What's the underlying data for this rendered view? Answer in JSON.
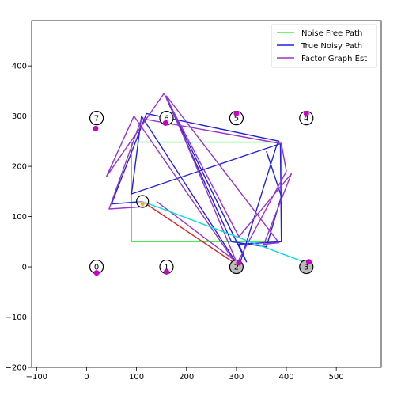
{
  "chart_data": {
    "type": "line",
    "title": "",
    "xlabel": "",
    "ylabel": "",
    "xlim": [
      -110,
      590
    ],
    "ylim": [
      -200,
      490
    ],
    "xticks": [
      -100,
      0,
      100,
      200,
      300,
      400,
      500
    ],
    "yticks": [
      -200,
      -100,
      0,
      100,
      200,
      300,
      400
    ],
    "xtick_labels": [
      "−100",
      "0",
      "100",
      "200",
      "300",
      "400",
      "500"
    ],
    "ytick_labels": [
      "−200",
      "−100",
      "0",
      "100",
      "200",
      "300",
      "400"
    ],
    "grid": false,
    "legend_position": "top-right",
    "colors": {
      "noise_free": "#44ee44",
      "true_noisy": "#2222dd",
      "factor_graph": "#9933cc",
      "landmark_est": "#cc00cc",
      "red_line": "#dd2222",
      "cyan_line": "#00dddd",
      "orange": "#ffaa00"
    },
    "series": [
      {
        "name": "Noise Free Path",
        "color": "#44ee44",
        "x": [
          180,
          90,
          90,
          390,
          390,
          120
        ],
        "y": [
          50,
          50,
          248,
          248,
          50,
          50
        ]
      },
      {
        "name": "True Noisy Path",
        "color": "#2222dd",
        "x": [
          112,
          50,
          120,
          385,
          380,
          305,
          110,
          90,
          388,
          390,
          305,
          320,
          160,
          290,
          360,
          390,
          360
        ],
        "y": [
          130,
          125,
          305,
          250,
          240,
          0,
          300,
          145,
          245,
          50,
          45,
          10,
          335,
          50,
          40,
          140,
          230
        ],
        "show_in_legend": true
      },
      {
        "name": "Factor Graph Est",
        "color": "#9933cc",
        "x": [
          120,
          45,
          110,
          390,
          400,
          300,
          95,
          40,
          155,
          305,
          410,
          355,
          385,
          160,
          300,
          140
        ],
        "y": [
          120,
          115,
          295,
          245,
          190,
          5,
          300,
          180,
          345,
          60,
          185,
          45,
          48,
          340,
          10,
          130
        ]
      },
      {
        "name": "",
        "color": "#dd2222",
        "x": [
          112,
          300
        ],
        "y": [
          130,
          5
        ]
      },
      {
        "name": "",
        "color": "#00dddd",
        "x": [
          112,
          440
        ],
        "y": [
          130,
          8
        ]
      }
    ],
    "landmarks": {
      "labels": [
        "0",
        "1",
        "2",
        "3",
        "4",
        "5",
        "6",
        "7"
      ],
      "true_positions": [
        [
          20,
          0
        ],
        [
          160,
          0
        ],
        [
          300,
          0
        ],
        [
          440,
          0
        ],
        [
          440,
          296
        ],
        [
          300,
          296
        ],
        [
          160,
          296
        ],
        [
          20,
          296
        ]
      ],
      "estimates": [
        [
          20,
          -12
        ],
        [
          160,
          -10
        ],
        [
          305,
          8
        ],
        [
          445,
          10
        ],
        [
          440,
          305
        ],
        [
          300,
          305
        ],
        [
          158,
          286
        ],
        [
          18,
          275
        ]
      ]
    },
    "robot_position": [
      112,
      130
    ]
  }
}
